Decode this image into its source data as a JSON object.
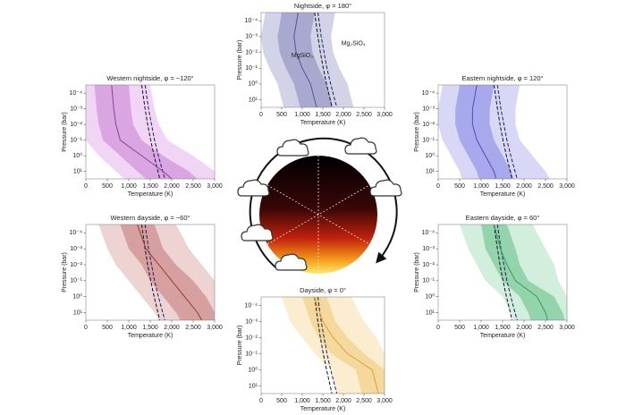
{
  "chart_data": [
    {
      "type": "profile",
      "title": "Nightside, φ = 180°",
      "x_label": "Temperature (K)",
      "y_label": "Pressure (bar)",
      "xlim": [
        0,
        3000
      ],
      "xticks": [
        0,
        500,
        {
          "value": 1000,
          "label": "1,000"
        },
        {
          "value": 1500,
          "label": "1,500"
        },
        {
          "value": 2000,
          "label": "2,000"
        },
        {
          "value": 2500,
          "label": "2,500"
        },
        {
          "value": 3000,
          "label": "3,000"
        }
      ],
      "ylim": [
        30,
        3e-05
      ],
      "y_log": true,
      "yticks": [
        {
          "value": 0.0001,
          "label": "10⁻⁴"
        },
        {
          "value": 0.001,
          "label": "10⁻³"
        },
        {
          "value": 0.01,
          "label": "10⁻²"
        },
        {
          "value": 0.1,
          "label": "10⁻¹"
        },
        {
          "value": 1,
          "label": "10⁰"
        },
        {
          "value": 10,
          "label": "10¹"
        }
      ],
      "pressure": [
        3e-05,
        0.001,
        0.01,
        0.1,
        1,
        10,
        30
      ],
      "series": [
        {
          "color": "#55558f",
          "values": [
            900,
            800,
            850,
            1000,
            1200,
            1300,
            1350
          ]
        }
      ],
      "bands": [
        {
          "color": "#d3d3e8",
          "low": [
            100,
            0,
            50,
            200,
            400,
            500,
            550
          ],
          "high": [
            1800,
            1700,
            1750,
            1900,
            2100,
            2200,
            2250
          ]
        },
        {
          "color": "#a9a9d0",
          "low": [
            500,
            400,
            450,
            600,
            800,
            900,
            950
          ],
          "high": [
            1300,
            1200,
            1250,
            1400,
            1600,
            1700,
            1750
          ]
        }
      ],
      "condensation": [
        {
          "color": "#111111",
          "values": [
            1300,
            1380,
            1440,
            1510,
            1590,
            1680,
            1720
          ]
        },
        {
          "color": "#1c1c6e",
          "values": [
            1380,
            1460,
            1530,
            1600,
            1690,
            1790,
            1840
          ]
        }
      ],
      "annotations": [
        "MgSiO₃",
        "Mg₂SiO₄"
      ]
    },
    {
      "type": "profile",
      "title": "Western nightside, φ = −120°",
      "x_label": "Temperature (K)",
      "y_label": "Pressure (bar)",
      "xlim": [
        0,
        3000
      ],
      "xticks": [
        0,
        500,
        {
          "value": 1000,
          "label": "1,000"
        },
        {
          "value": 1500,
          "label": "1,500"
        },
        {
          "value": 2000,
          "label": "2,000"
        },
        {
          "value": 2500,
          "label": "2,500"
        },
        {
          "value": 3000,
          "label": "3,000"
        }
      ],
      "ylim": [
        30,
        3e-05
      ],
      "y_log": true,
      "yticks": [
        {
          "value": 0.0001,
          "label": "10⁻⁴"
        },
        {
          "value": 0.001,
          "label": "10⁻³"
        },
        {
          "value": 0.01,
          "label": "10⁻²"
        },
        {
          "value": 0.1,
          "label": "10⁻¹"
        },
        {
          "value": 1,
          "label": "10⁰"
        },
        {
          "value": 10,
          "label": "10¹"
        }
      ],
      "pressure": [
        3e-05,
        0.001,
        0.01,
        0.1,
        1,
        10,
        30
      ],
      "series": [
        {
          "color": "#8e3f9e",
          "values": [
            600,
            650,
            700,
            800,
            1300,
            1800,
            2000
          ]
        }
      ],
      "bands": [
        {
          "color": "#f0d6f4",
          "low": [
            0,
            0,
            0,
            0,
            300,
            700,
            900
          ],
          "high": [
            1500,
            1600,
            1700,
            1900,
            2500,
            3000,
            3000
          ]
        },
        {
          "color": "#d9a6e2",
          "low": [
            200,
            250,
            300,
            400,
            800,
            1200,
            1400
          ],
          "high": [
            1000,
            1050,
            1100,
            1300,
            1800,
            2400,
            2600
          ]
        }
      ],
      "condensation": [
        {
          "color": "#111111",
          "values": [
            1300,
            1380,
            1440,
            1510,
            1590,
            1680,
            1720
          ]
        },
        {
          "color": "#1c1c6e",
          "values": [
            1380,
            1460,
            1530,
            1600,
            1690,
            1790,
            1840
          ]
        }
      ]
    },
    {
      "type": "profile",
      "title": "Eastern nightside, φ = 120°",
      "x_label": "Temperature (K)",
      "y_label": "Pressure (bar)",
      "xlim": [
        0,
        3000
      ],
      "xticks": [
        0,
        500,
        {
          "value": 1000,
          "label": "1,000"
        },
        {
          "value": 1500,
          "label": "1,500"
        },
        {
          "value": 2000,
          "label": "2,000"
        },
        {
          "value": 2500,
          "label": "2,500"
        },
        {
          "value": 3000,
          "label": "3,000"
        }
      ],
      "ylim": [
        30,
        3e-05
      ],
      "y_log": true,
      "yticks": [
        {
          "value": 0.0001,
          "label": "10⁻⁴"
        },
        {
          "value": 0.001,
          "label": "10⁻³"
        },
        {
          "value": 0.01,
          "label": "10⁻²"
        },
        {
          "value": 0.1,
          "label": "10⁻¹"
        },
        {
          "value": 1,
          "label": "10⁰"
        },
        {
          "value": 10,
          "label": "10¹"
        }
      ],
      "pressure": [
        3e-05,
        0.001,
        0.01,
        0.1,
        1,
        10,
        30
      ],
      "series": [
        {
          "color": "#4e4eb8",
          "values": [
            900,
            800,
            800,
            900,
            1100,
            1300,
            1350
          ]
        }
      ],
      "bands": [
        {
          "color": "#d8d8f6",
          "low": [
            100,
            0,
            0,
            100,
            300,
            500,
            550
          ],
          "high": [
            1900,
            1800,
            1800,
            1900,
            2200,
            2500,
            2600
          ]
        },
        {
          "color": "#a8a8ec",
          "low": [
            500,
            400,
            400,
            500,
            700,
            900,
            950
          ],
          "high": [
            1300,
            1200,
            1200,
            1300,
            1500,
            1700,
            1750
          ]
        }
      ],
      "condensation": [
        {
          "color": "#111111",
          "values": [
            1300,
            1380,
            1440,
            1510,
            1590,
            1680,
            1720
          ]
        },
        {
          "color": "#1c1c6e",
          "values": [
            1380,
            1460,
            1530,
            1600,
            1690,
            1790,
            1840
          ]
        }
      ]
    },
    {
      "type": "profile",
      "title": "Western dayside, φ = −60°",
      "x_label": "Temperature (K)",
      "y_label": "Pressure (bar)",
      "xlim": [
        0,
        3000
      ],
      "xticks": [
        0,
        500,
        {
          "value": 1000,
          "label": "1,000"
        },
        {
          "value": 1500,
          "label": "1,500"
        },
        {
          "value": 2000,
          "label": "2,000"
        },
        {
          "value": 2500,
          "label": "2,500"
        },
        {
          "value": 3000,
          "label": "3,000"
        }
      ],
      "ylim": [
        30,
        3e-05
      ],
      "y_log": true,
      "yticks": [
        {
          "value": 0.0001,
          "label": "10⁻⁴"
        },
        {
          "value": 0.001,
          "label": "10⁻³"
        },
        {
          "value": 0.01,
          "label": "10⁻²"
        },
        {
          "value": 0.1,
          "label": "10⁻¹"
        },
        {
          "value": 1,
          "label": "10⁰"
        },
        {
          "value": 10,
          "label": "10¹"
        }
      ],
      "pressure": [
        3e-05,
        0.001,
        0.01,
        0.1,
        1,
        10,
        30
      ],
      "series": [
        {
          "color": "#973838",
          "values": [
            1200,
            1400,
            1700,
            2000,
            2300,
            2600,
            2700
          ]
        }
      ],
      "bands": [
        {
          "color": "#eed3d3",
          "low": [
            300,
            500,
            700,
            1000,
            1300,
            1600,
            1700
          ],
          "high": [
            2100,
            2400,
            2700,
            3000,
            3000,
            3000,
            3000
          ]
        },
        {
          "color": "#d6a0a0",
          "low": [
            800,
            1000,
            1300,
            1500,
            1800,
            2100,
            2200
          ],
          "high": [
            1600,
            1800,
            2100,
            2500,
            2800,
            3000,
            3000
          ]
        }
      ],
      "condensation": [
        {
          "color": "#111111",
          "values": [
            1300,
            1380,
            1440,
            1510,
            1590,
            1680,
            1720
          ]
        },
        {
          "color": "#1c1c6e",
          "values": [
            1380,
            1460,
            1530,
            1600,
            1690,
            1790,
            1840
          ]
        }
      ]
    },
    {
      "type": "profile",
      "title": "Eastern dayside, φ = 60°",
      "x_label": "Temperature (K)",
      "y_label": "Pressure (bar)",
      "xlim": [
        0,
        3000
      ],
      "xticks": [
        0,
        500,
        {
          "value": 1000,
          "label": "1,000"
        },
        {
          "value": 1500,
          "label": "1,500"
        },
        {
          "value": 2000,
          "label": "2,000"
        },
        {
          "value": 2500,
          "label": "2,500"
        },
        {
          "value": 3000,
          "label": "3,000"
        }
      ],
      "ylim": [
        30,
        3e-05
      ],
      "y_log": true,
      "yticks": [
        {
          "value": 0.0001,
          "label": "10⁻⁴"
        },
        {
          "value": 0.001,
          "label": "10⁻³"
        },
        {
          "value": 0.01,
          "label": "10⁻²"
        },
        {
          "value": 0.1,
          "label": "10⁻¹"
        },
        {
          "value": 1,
          "label": "10⁰"
        },
        {
          "value": 10,
          "label": "10¹"
        }
      ],
      "pressure": [
        3e-05,
        0.001,
        0.01,
        0.1,
        1,
        10,
        30
      ],
      "series": [
        {
          "color": "#3a9860",
          "values": [
            1300,
            1450,
            1600,
            1800,
            2300,
            2500,
            2550
          ]
        }
      ],
      "bands": [
        {
          "color": "#d2eedc",
          "low": [
            500,
            700,
            900,
            1100,
            1500,
            1700,
            1750
          ],
          "high": [
            2200,
            2500,
            2700,
            2800,
            3000,
            3000,
            3000
          ]
        },
        {
          "color": "#94d4ac",
          "low": [
            1000,
            1100,
            1300,
            1500,
            1900,
            2100,
            2150
          ],
          "high": [
            1600,
            1800,
            1900,
            2100,
            2700,
            2900,
            2950
          ]
        }
      ],
      "condensation": [
        {
          "color": "#111111",
          "values": [
            1300,
            1380,
            1440,
            1510,
            1590,
            1680,
            1720
          ]
        },
        {
          "color": "#1c1c6e",
          "values": [
            1380,
            1460,
            1530,
            1600,
            1690,
            1790,
            1840
          ]
        }
      ]
    },
    {
      "type": "profile",
      "title": "Dayside, φ = 0°",
      "x_label": "Temperature (K)",
      "y_label": "Pressure (bar)",
      "xlim": [
        0,
        3000
      ],
      "xticks": [
        0,
        500,
        {
          "value": 1000,
          "label": "1,000"
        },
        {
          "value": 1500,
          "label": "1,500"
        },
        {
          "value": 2000,
          "label": "2,000"
        },
        {
          "value": 2500,
          "label": "2,500"
        },
        {
          "value": 3000,
          "label": "3,000"
        }
      ],
      "ylim": [
        30,
        3e-05
      ],
      "y_log": true,
      "yticks": [
        {
          "value": 0.0001,
          "label": "10⁻⁴"
        },
        {
          "value": 0.001,
          "label": "10⁻³"
        },
        {
          "value": 0.01,
          "label": "10⁻²"
        },
        {
          "value": 0.1,
          "label": "10⁻¹"
        },
        {
          "value": 1,
          "label": "10⁰"
        },
        {
          "value": 10,
          "label": "10¹"
        }
      ],
      "pressure": [
        3e-05,
        0.001,
        0.01,
        0.1,
        1,
        10,
        30
      ],
      "series": [
        {
          "color": "#d6a243",
          "values": [
            1300,
            1500,
            1750,
            2100,
            2700,
            2800,
            2850
          ]
        }
      ],
      "bands": [
        {
          "color": "#fbedcf",
          "low": [
            500,
            700,
            1000,
            1300,
            1700,
            1800,
            1850
          ],
          "high": [
            2200,
            2500,
            2800,
            3000,
            3000,
            3000,
            3000
          ]
        },
        {
          "color": "#f5d89c",
          "low": [
            1000,
            1200,
            1400,
            1700,
            2300,
            2400,
            2450
          ],
          "high": [
            1600,
            1800,
            2100,
            2500,
            3000,
            3000,
            3000
          ]
        }
      ],
      "condensation": [
        {
          "color": "#111111",
          "values": [
            1300,
            1380,
            1440,
            1510,
            1590,
            1680,
            1720
          ]
        },
        {
          "color": "#1c1c6e",
          "values": [
            1380,
            1460,
            1530,
            1600,
            1690,
            1790,
            1840
          ]
        }
      ]
    }
  ]
}
